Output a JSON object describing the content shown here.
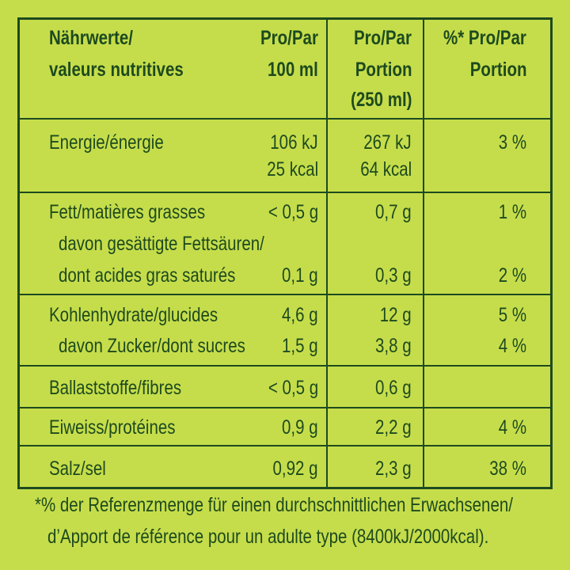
{
  "table": {
    "header": {
      "label": [
        "Nährwerte/",
        "valeurs nutritives"
      ],
      "per100": [
        "Pro/Par",
        "100 ml"
      ],
      "portion": [
        "Pro/Par",
        "Portion",
        "(250 ml)"
      ],
      "percent": [
        "%* Pro/Par",
        "Portion"
      ]
    },
    "groups": [
      [
        {
          "label": "Energie/énergie",
          "per100": "106 kJ",
          "portion": "267 kJ",
          "percent": "3 %"
        },
        {
          "per100": "25 kcal",
          "portion": "64 kcal"
        }
      ],
      [
        {
          "label": "Fett/matières grasses",
          "per100": "< 0,5 g",
          "portion": "0,7 g",
          "percent": "1 %"
        },
        {
          "label": "davon gesättigte Fettsäuren/"
        },
        {
          "label": "dont acides gras saturés",
          "per100": "0,1 g",
          "portion": "0,3 g",
          "percent": "2 %"
        }
      ],
      [
        {
          "label": "Kohlenhydrate/glucides",
          "per100": "4,6 g",
          "portion": "12 g",
          "percent": "5 %"
        },
        {
          "label": "davon Zucker/dont sucres",
          "per100": "1,5 g",
          "portion": "3,8 g",
          "percent": "4 %"
        }
      ],
      [
        {
          "label": "Ballaststoffe/fibres",
          "per100": "< 0,5 g",
          "portion": "0,6 g"
        }
      ],
      [
        {
          "label": "Eiweiss/protéines",
          "per100": "0,9 g",
          "portion": "2,2 g",
          "percent": "4 %"
        }
      ],
      [
        {
          "label": "Salz/sel",
          "per100": "0,92 g",
          "portion": "2,3 g",
          "percent": "38 %"
        }
      ]
    ]
  },
  "footnote": [
    "*% der Referenzmenge für einen durchschnittlichen Erwachsenen/",
    "d’Apport de référence pour un adulte type (8400kJ/2000kcal)."
  ]
}
